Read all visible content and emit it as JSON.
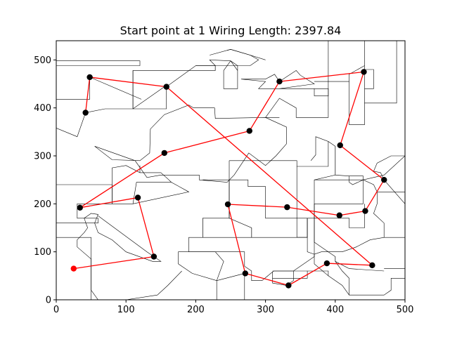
{
  "chart_data": {
    "type": "line",
    "title": "Start point at 1 Wiring Length: 2397.84",
    "xlabel": "",
    "ylabel": "",
    "xlim": [
      0,
      500
    ],
    "ylim": [
      0,
      540
    ],
    "x_ticks": [
      0,
      100,
      200,
      300,
      400,
      500
    ],
    "y_ticks": [
      0,
      100,
      200,
      300,
      400,
      500
    ],
    "grid": false,
    "colors": {
      "path": "#ff0000",
      "node": "#000000",
      "start": "#ff0000",
      "outline": "#000000"
    },
    "start_point": {
      "x": 25,
      "y": 65
    },
    "series": [
      {
        "values": [
          [
            25,
            65
          ],
          [
            140,
            90
          ],
          [
            117,
            213
          ],
          [
            34,
            192
          ],
          [
            155,
            306
          ],
          [
            277,
            352
          ],
          [
            320,
            455
          ],
          [
            441,
            475
          ],
          [
            407,
            322
          ],
          [
            470,
            250
          ],
          [
            443,
            185
          ],
          [
            406,
            176
          ],
          [
            331,
            193
          ],
          [
            246,
            199
          ],
          [
            271,
            55
          ],
          [
            333,
            30
          ],
          [
            388,
            76
          ],
          [
            453,
            72
          ],
          [
            158,
            444
          ],
          [
            48,
            464
          ],
          [
            42,
            390
          ]
        ]
      }
    ],
    "region_outlines": [
      [
        [
          0,
          418
        ],
        [
          48,
          418
        ],
        [
          48,
          464
        ],
        [
          122,
          418
        ]
      ],
      [
        [
          0,
          498
        ],
        [
          48,
          498
        ],
        [
          120,
          498
        ],
        [
          120,
          488
        ],
        [
          0,
          488
        ]
      ],
      [
        [
          0,
          358
        ],
        [
          30,
          340
        ],
        [
          42,
          390
        ],
        [
          70,
          398
        ],
        [
          110,
          398
        ],
        [
          155,
          444
        ],
        [
          158,
          444
        ],
        [
          200,
          488
        ],
        [
          228,
          488
        ],
        [
          228,
          478
        ],
        [
          158,
          478
        ],
        [
          110,
          478
        ],
        [
          110,
          418
        ],
        [
          110,
          398
        ]
      ],
      [
        [
          110,
          478
        ],
        [
          110,
          398
        ],
        [
          158,
          398
        ],
        [
          158,
          444
        ]
      ],
      [
        [
          55,
          320
        ],
        [
          80,
          292
        ],
        [
          120,
          290
        ],
        [
          134,
          306
        ],
        [
          135,
          356
        ],
        [
          155,
          386
        ],
        [
          190,
          406
        ],
        [
          197,
          400
        ],
        [
          227,
          400
        ],
        [
          228,
          378
        ],
        [
          300,
          380
        ],
        [
          330,
          360
        ],
        [
          330,
          325
        ],
        [
          315,
          300
        ],
        [
          300,
          280
        ],
        [
          276,
          306
        ],
        [
          255,
          260
        ],
        [
          245,
          245
        ],
        [
          205,
          250
        ],
        [
          205,
          260
        ],
        [
          150,
          260
        ],
        [
          130,
          255
        ],
        [
          113,
          290
        ],
        [
          55,
          320
        ]
      ],
      [
        [
          228,
          478
        ],
        [
          228,
          488
        ],
        [
          260,
          488
        ],
        [
          260,
          440
        ],
        [
          240,
          440
        ],
        [
          240,
          478
        ]
      ],
      [
        [
          200,
          488
        ],
        [
          228,
          488
        ],
        [
          220,
          500
        ],
        [
          250,
          498
        ],
        [
          260,
          478
        ]
      ],
      [
        [
          220,
          510
        ],
        [
          250,
          522
        ],
        [
          278,
          510
        ],
        [
          290,
          500
        ],
        [
          278,
          488
        ],
        [
          260,
          488
        ],
        [
          250,
          498
        ],
        [
          240,
          478
        ]
      ],
      [
        [
          300,
          500
        ],
        [
          278,
          510
        ],
        [
          250,
          522
        ],
        [
          245,
          520
        ]
      ],
      [
        [
          265,
          460
        ],
        [
          300,
          460
        ],
        [
          313,
          470
        ],
        [
          320,
          455
        ],
        [
          344,
          478
        ],
        [
          350,
          468
        ],
        [
          370,
          450
        ],
        [
          320,
          440
        ],
        [
          290,
          440
        ],
        [
          300,
          455
        ],
        [
          265,
          460
        ]
      ],
      [
        [
          370,
          455
        ],
        [
          390,
          455
        ],
        [
          390,
          425
        ],
        [
          370,
          425
        ],
        [
          370,
          440
        ]
      ],
      [
        [
          390,
          540
        ],
        [
          390,
          488
        ],
        [
          390,
          455
        ],
        [
          420,
          455
        ],
        [
          420,
          470
        ],
        [
          442,
          488
        ],
        [
          442,
          540
        ]
      ],
      [
        [
          390,
          540
        ],
        [
          488,
          540
        ],
        [
          488,
          410
        ],
        [
          442,
          410
        ],
        [
          442,
          488
        ]
      ],
      [
        [
          320,
          440
        ],
        [
          390,
          440
        ],
        [
          390,
          380
        ],
        [
          344,
          380
        ],
        [
          344,
          400
        ],
        [
          320,
          420
        ],
        [
          300,
          380
        ],
        [
          320,
          380
        ]
      ],
      [
        [
          248,
          290
        ],
        [
          345,
          290
        ],
        [
          345,
          278
        ],
        [
          390,
          278
        ],
        [
          390,
          330
        ],
        [
          372,
          340
        ],
        [
          372,
          302
        ],
        [
          365,
          290
        ]
      ],
      [
        [
          390,
          330
        ],
        [
          400,
          320
        ],
        [
          400,
          260
        ],
        [
          370,
          250
        ],
        [
          370,
          170
        ],
        [
          360,
          170
        ],
        [
          360,
          130
        ],
        [
          345,
          130
        ],
        [
          345,
          278
        ]
      ],
      [
        [
          248,
          290
        ],
        [
          248,
          250
        ],
        [
          275,
          250
        ],
        [
          275,
          236
        ],
        [
          300,
          236
        ],
        [
          300,
          170
        ],
        [
          360,
          170
        ],
        [
          360,
          130
        ],
        [
          280,
          130
        ],
        [
          280,
          150
        ],
        [
          248,
          170
        ],
        [
          248,
          290
        ]
      ],
      [
        [
          210,
          250
        ],
        [
          248,
          250
        ],
        [
          248,
          170
        ],
        [
          210,
          170
        ],
        [
          210,
          130
        ],
        [
          280,
          130
        ],
        [
          280,
          150
        ]
      ],
      [
        [
          210,
          170
        ],
        [
          210,
          130
        ],
        [
          190,
          130
        ],
        [
          190,
          100
        ],
        [
          270,
          100
        ],
        [
          270,
          70
        ],
        [
          280,
          60
        ],
        [
          280,
          40
        ],
        [
          295,
          40
        ],
        [
          310,
          58
        ],
        [
          312,
          60
        ],
        [
          340,
          60
        ],
        [
          370,
          90
        ],
        [
          370,
          170
        ]
      ],
      [
        [
          310,
          58
        ],
        [
          310,
          35
        ],
        [
          330,
          30
        ],
        [
          340,
          40
        ],
        [
          340,
          60
        ]
      ],
      [
        [
          230,
          40
        ],
        [
          230,
          0
        ],
        [
          270,
          0
        ],
        [
          270,
          55
        ],
        [
          230,
          40
        ]
      ],
      [
        [
          230,
          40
        ],
        [
          240,
          80
        ],
        [
          228,
          100
        ],
        [
          175,
          100
        ],
        [
          175,
          75
        ],
        [
          195,
          55
        ],
        [
          230,
          40
        ]
      ],
      [
        [
          180,
          60
        ],
        [
          160,
          30
        ],
        [
          145,
          10
        ],
        [
          100,
          0
        ],
        [
          60,
          0
        ]
      ],
      [
        [
          60,
          0
        ],
        [
          50,
          20
        ],
        [
          50,
          60
        ],
        [
          50,
          85
        ],
        [
          30,
          110
        ],
        [
          30,
          125
        ],
        [
          40,
          140
        ],
        [
          45,
          150
        ],
        [
          40,
          170
        ],
        [
          50,
          180
        ],
        [
          60,
          178
        ],
        [
          55,
          160
        ],
        [
          60,
          140
        ],
        [
          80,
          125
        ],
        [
          100,
          100
        ],
        [
          138,
          80
        ],
        [
          150,
          80
        ],
        [
          130,
          100
        ],
        [
          60,
          175
        ]
      ],
      [
        [
          0,
          0
        ],
        [
          50,
          0
        ],
        [
          50,
          130
        ],
        [
          0,
          130
        ]
      ],
      [
        [
          0,
          240
        ],
        [
          80,
          240
        ],
        [
          80,
          200
        ],
        [
          30,
          200
        ],
        [
          30,
          170
        ],
        [
          60,
          170
        ],
        [
          60,
          160
        ],
        [
          30,
          160
        ],
        [
          0,
          160
        ]
      ],
      [
        [
          80,
          200
        ],
        [
          80,
          275
        ],
        [
          100,
          280
        ],
        [
          120,
          265
        ],
        [
          150,
          265
        ],
        [
          160,
          252
        ],
        [
          165,
          245
        ],
        [
          190,
          225
        ],
        [
          110,
          200
        ],
        [
          80,
          200
        ]
      ],
      [
        [
          110,
          200
        ],
        [
          115,
          245
        ],
        [
          165,
          245
        ]
      ],
      [
        [
          120,
          280
        ],
        [
          120,
          265
        ]
      ],
      [
        [
          440,
          480
        ],
        [
          455,
          480
        ],
        [
          455,
          440
        ],
        [
          442,
          440
        ]
      ],
      [
        [
          420,
          455
        ],
        [
          420,
          365
        ],
        [
          442,
          365
        ],
        [
          442,
          410
        ]
      ],
      [
        [
          400,
          320
        ],
        [
          400,
          260
        ],
        [
          420,
          258
        ],
        [
          440,
          258
        ],
        [
          440,
          250
        ],
        [
          455,
          240
        ],
        [
          460,
          225
        ],
        [
          460,
          200
        ],
        [
          455,
          180
        ],
        [
          470,
          160
        ],
        [
          470,
          130
        ],
        [
          500,
          130
        ],
        [
          500,
          100
        ],
        [
          500,
          45
        ],
        [
          480,
          45
        ],
        [
          480,
          20
        ],
        [
          470,
          10
        ],
        [
          420,
          10
        ],
        [
          420,
          45
        ],
        [
          410,
          60
        ],
        [
          400,
          80
        ],
        [
          400,
          90
        ],
        [
          390,
          100
        ],
        [
          370,
          120
        ],
        [
          370,
          170
        ]
      ],
      [
        [
          360,
          170
        ],
        [
          360,
          130
        ],
        [
          345,
          130
        ]
      ],
      [
        [
          420,
          258
        ],
        [
          420,
          245
        ],
        [
          425,
          240
        ],
        [
          440,
          250
        ]
      ],
      [
        [
          370,
          250
        ],
        [
          440,
          250
        ],
        [
          440,
          200
        ],
        [
          370,
          200
        ]
      ],
      [
        [
          370,
          200
        ],
        [
          370,
          170
        ],
        [
          420,
          170
        ],
        [
          420,
          150
        ],
        [
          442,
          150
        ],
        [
          442,
          200
        ]
      ],
      [
        [
          440,
          250
        ],
        [
          470,
          260
        ],
        [
          500,
          300
        ],
        [
          480,
          300
        ],
        [
          460,
          285
        ],
        [
          455,
          268
        ],
        [
          465,
          265
        ],
        [
          470,
          250
        ],
        [
          500,
          200
        ]
      ],
      [
        [
          460,
          225
        ],
        [
          500,
          225
        ]
      ],
      [
        [
          380,
          100
        ],
        [
          410,
          100
        ],
        [
          430,
          110
        ],
        [
          450,
          125
        ],
        [
          470,
          130
        ]
      ],
      [
        [
          380,
          100
        ],
        [
          370,
          95
        ],
        [
          370,
          75
        ],
        [
          390,
          50
        ],
        [
          410,
          30
        ],
        [
          420,
          10
        ]
      ],
      [
        [
          360,
          130
        ],
        [
          360,
          100
        ],
        [
          370,
          95
        ]
      ],
      [
        [
          360,
          60
        ],
        [
          390,
          60
        ],
        [
          390,
          50
        ]
      ],
      [
        [
          310,
          60
        ],
        [
          360,
          60
        ],
        [
          360,
          45
        ],
        [
          310,
          45
        ]
      ],
      [
        [
          400,
          80
        ],
        [
          420,
          65
        ],
        [
          470,
          60
        ]
      ],
      [
        [
          500,
          65
        ],
        [
          470,
          65
        ]
      ],
      [
        [
          400,
          90
        ],
        [
          400,
          80
        ]
      ]
    ]
  }
}
